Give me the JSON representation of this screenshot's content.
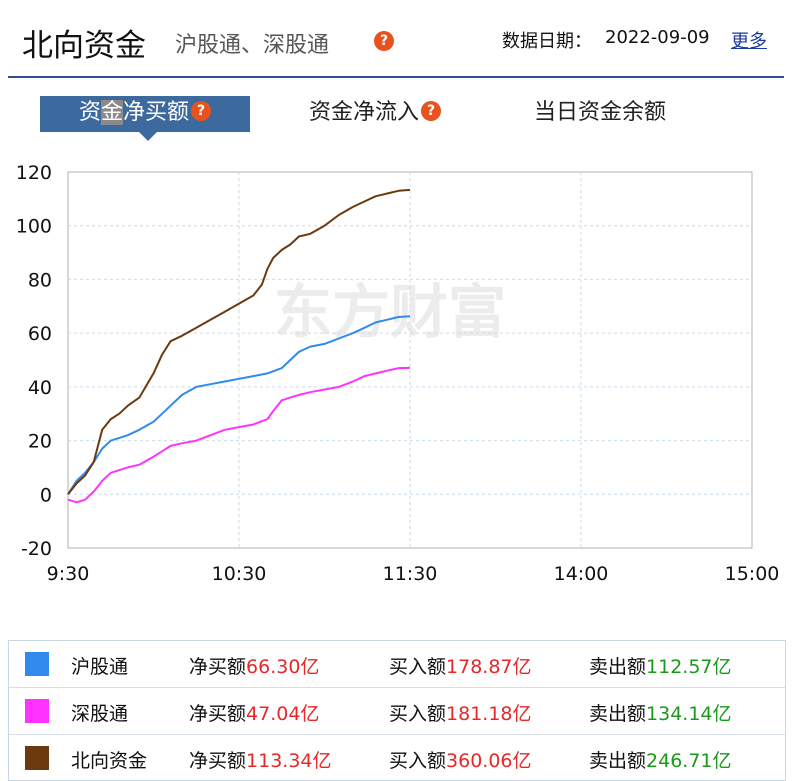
{
  "header": {
    "title": "北向资金",
    "subtitle": "沪股通、深股通",
    "help_glyph": "?",
    "date_label": "数据日期：",
    "date_value": "2022-09-09",
    "more_link": "更多"
  },
  "tabs": [
    {
      "label_pre": "资",
      "label_hl": "金",
      "label_post": "净买额",
      "active": true,
      "has_help": true
    },
    {
      "label": "资金净流入",
      "active": false,
      "has_help": true
    },
    {
      "label": "当日资金余额",
      "active": false,
      "has_help": false
    }
  ],
  "watermark": "东方财富",
  "colors": {
    "accent": "#3d6a9e",
    "help_icon": "#e8521c",
    "sh": "#2f8aeb",
    "sz": "#ff33ff",
    "north": "#6b3a0f",
    "buy_red": "#e62828",
    "sell_green": "#1a9a1a"
  },
  "chart_data": {
    "type": "line",
    "x_ticks": [
      "9:30",
      "10:30",
      "11:30",
      "14:00",
      "15:00"
    ],
    "x_range_minutes": [
      0,
      240
    ],
    "ylim": [
      -20,
      120
    ],
    "yticks": [
      -20,
      0,
      20,
      40,
      60,
      80,
      100,
      120
    ],
    "grid": true,
    "series": [
      {
        "name": "沪股通",
        "color": "#2f8aeb",
        "points": [
          [
            0,
            0
          ],
          [
            3,
            5
          ],
          [
            6,
            8
          ],
          [
            9,
            12
          ],
          [
            12,
            17
          ],
          [
            15,
            20
          ],
          [
            18,
            21
          ],
          [
            21,
            22
          ],
          [
            25,
            24
          ],
          [
            30,
            27
          ],
          [
            33,
            30
          ],
          [
            36,
            33
          ],
          [
            40,
            37
          ],
          [
            45,
            40
          ],
          [
            50,
            41
          ],
          [
            55,
            42
          ],
          [
            60,
            43
          ],
          [
            65,
            44
          ],
          [
            70,
            45
          ],
          [
            75,
            47
          ],
          [
            78,
            50
          ],
          [
            81,
            53
          ],
          [
            85,
            55
          ],
          [
            90,
            56
          ],
          [
            95,
            58
          ],
          [
            100,
            60
          ],
          [
            104,
            62
          ],
          [
            108,
            64
          ],
          [
            112,
            65
          ],
          [
            116,
            66
          ],
          [
            120,
            66.3
          ]
        ]
      },
      {
        "name": "深股通",
        "color": "#ff33ff",
        "points": [
          [
            0,
            -2
          ],
          [
            3,
            -3
          ],
          [
            6,
            -2
          ],
          [
            9,
            1
          ],
          [
            12,
            5
          ],
          [
            15,
            8
          ],
          [
            18,
            9
          ],
          [
            21,
            10
          ],
          [
            25,
            11
          ],
          [
            30,
            14
          ],
          [
            33,
            16
          ],
          [
            36,
            18
          ],
          [
            40,
            19
          ],
          [
            45,
            20
          ],
          [
            50,
            22
          ],
          [
            55,
            24
          ],
          [
            60,
            25
          ],
          [
            65,
            26
          ],
          [
            70,
            28
          ],
          [
            72,
            31
          ],
          [
            75,
            35
          ],
          [
            78,
            36
          ],
          [
            81,
            37
          ],
          [
            85,
            38
          ],
          [
            90,
            39
          ],
          [
            95,
            40
          ],
          [
            100,
            42
          ],
          [
            104,
            44
          ],
          [
            108,
            45
          ],
          [
            112,
            46
          ],
          [
            116,
            47
          ],
          [
            120,
            47.04
          ]
        ]
      },
      {
        "name": "北向资金",
        "color": "#6b3a0f",
        "points": [
          [
            0,
            0
          ],
          [
            3,
            4
          ],
          [
            6,
            7
          ],
          [
            9,
            12
          ],
          [
            12,
            24
          ],
          [
            15,
            28
          ],
          [
            18,
            30
          ],
          [
            21,
            33
          ],
          [
            25,
            36
          ],
          [
            30,
            45
          ],
          [
            33,
            52
          ],
          [
            36,
            57
          ],
          [
            40,
            59
          ],
          [
            45,
            62
          ],
          [
            50,
            65
          ],
          [
            55,
            68
          ],
          [
            60,
            71
          ],
          [
            65,
            74
          ],
          [
            68,
            78
          ],
          [
            70,
            84
          ],
          [
            72,
            88
          ],
          [
            75,
            91
          ],
          [
            78,
            93
          ],
          [
            81,
            96
          ],
          [
            85,
            97
          ],
          [
            90,
            100
          ],
          [
            95,
            104
          ],
          [
            100,
            107
          ],
          [
            104,
            109
          ],
          [
            108,
            111
          ],
          [
            112,
            112
          ],
          [
            116,
            113
          ],
          [
            120,
            113.34
          ]
        ]
      }
    ]
  },
  "legend": [
    {
      "name": "沪股通",
      "color": "#2f8aeb",
      "net_label": "净买额",
      "net": "66.30亿",
      "buy_label": "买入额",
      "buy": "178.87亿",
      "sell_label": "卖出额",
      "sell": "112.57亿"
    },
    {
      "name": "深股通",
      "color": "#ff33ff",
      "net_label": "净买额",
      "net": "47.04亿",
      "buy_label": "买入额",
      "buy": "181.18亿",
      "sell_label": "卖出额",
      "sell": "134.14亿"
    },
    {
      "name": "北向资金",
      "color": "#6b3a0f",
      "net_label": "净买额",
      "net": "113.34亿",
      "buy_label": "买入额",
      "buy": "360.06亿",
      "sell_label": "卖出额",
      "sell": "246.71亿"
    }
  ]
}
